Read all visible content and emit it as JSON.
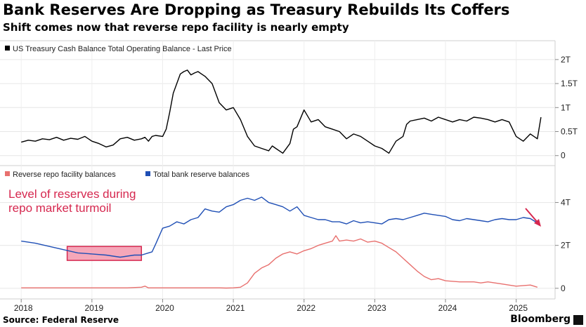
{
  "title": "Bank Reserves Are Dropping as Treasury Rebuilds Its Coffers",
  "subtitle": "Shift comes now that reverse repo facility is nearly empty",
  "source": "Source: Federal Reserve",
  "brand": "Bloomberg",
  "colors": {
    "treasury": "#000000",
    "rrp": "#e8706e",
    "reserves": "#1f4fb5",
    "highlight_fill": "#f28aa2",
    "highlight_stroke": "#d6284f",
    "annotation": "#d6284f"
  },
  "annotation": {
    "line1": "Level of reserves during",
    "line2": "repo market turmoil"
  },
  "chart_data": [
    {
      "type": "line",
      "legend": [
        "US Treasury Cash Balance Total Operating Balance - Last Price"
      ],
      "ylim": [
        -0.15,
        2.1
      ],
      "y_ticks": [
        0,
        0.5,
        1,
        1.5,
        2
      ],
      "y_tick_labels": [
        "0",
        "0.5T",
        "1T",
        "1.5T",
        "2T"
      ],
      "series": [
        {
          "name": "US Treasury Cash Balance Total Operating Balance - Last Price",
          "x": [
            2018.0,
            2018.1,
            2018.2,
            2018.3,
            2018.4,
            2018.5,
            2018.6,
            2018.7,
            2018.8,
            2018.9,
            2019.0,
            2019.1,
            2019.2,
            2019.3,
            2019.4,
            2019.5,
            2019.6,
            2019.7,
            2019.75,
            2019.8,
            2019.85,
            2019.9,
            2020.0,
            2020.05,
            2020.1,
            2020.15,
            2020.2,
            2020.25,
            2020.3,
            2020.35,
            2020.4,
            2020.45,
            2020.5,
            2020.55,
            2020.6,
            2020.7,
            2020.8,
            2020.9,
            2021.0,
            2021.1,
            2021.2,
            2021.3,
            2021.4,
            2021.5,
            2021.55,
            2021.6,
            2021.7,
            2021.8,
            2021.85,
            2021.9,
            2022.0,
            2022.1,
            2022.2,
            2022.3,
            2022.4,
            2022.5,
            2022.6,
            2022.7,
            2022.8,
            2022.9,
            2023.0,
            2023.1,
            2023.2,
            2023.3,
            2023.4,
            2023.45,
            2023.5,
            2023.6,
            2023.7,
            2023.8,
            2023.9,
            2024.0,
            2024.1,
            2024.2,
            2024.3,
            2024.4,
            2024.5,
            2024.6,
            2024.7,
            2024.8,
            2024.9,
            2025.0,
            2025.1,
            2025.2,
            2025.3,
            2025.35
          ],
          "y": [
            0.28,
            0.32,
            0.3,
            0.35,
            0.33,
            0.38,
            0.32,
            0.36,
            0.34,
            0.4,
            0.3,
            0.25,
            0.18,
            0.22,
            0.35,
            0.38,
            0.32,
            0.35,
            0.38,
            0.3,
            0.4,
            0.42,
            0.4,
            0.55,
            0.9,
            1.3,
            1.5,
            1.7,
            1.75,
            1.78,
            1.68,
            1.72,
            1.75,
            1.7,
            1.65,
            1.5,
            1.1,
            0.95,
            1.0,
            0.75,
            0.4,
            0.2,
            0.15,
            0.1,
            0.2,
            0.15,
            0.05,
            0.25,
            0.55,
            0.6,
            0.95,
            0.7,
            0.75,
            0.6,
            0.55,
            0.5,
            0.35,
            0.45,
            0.4,
            0.3,
            0.2,
            0.15,
            0.05,
            0.3,
            0.4,
            0.65,
            0.72,
            0.75,
            0.78,
            0.72,
            0.8,
            0.75,
            0.7,
            0.75,
            0.72,
            0.8,
            0.78,
            0.75,
            0.7,
            0.75,
            0.7,
            0.4,
            0.3,
            0.45,
            0.35,
            0.8
          ]
        }
      ]
    },
    {
      "type": "line",
      "legend": [
        "Reverse repo facility balances",
        "Total bank reserve balances"
      ],
      "ylim": [
        -0.3,
        5.0
      ],
      "y_ticks": [
        0,
        2,
        4
      ],
      "y_tick_labels": [
        "0",
        "2T",
        "4T"
      ],
      "series": [
        {
          "name": "Reverse repo facility balances",
          "x": [
            2018.0,
            2018.5,
            2019.0,
            2019.5,
            2019.7,
            2019.75,
            2019.8,
            2020.0,
            2020.5,
            2020.8,
            2020.9,
            2021.0,
            2021.1,
            2021.2,
            2021.3,
            2021.4,
            2021.5,
            2021.6,
            2021.7,
            2021.8,
            2021.9,
            2022.0,
            2022.1,
            2022.2,
            2022.3,
            2022.4,
            2022.45,
            2022.5,
            2022.6,
            2022.7,
            2022.8,
            2022.9,
            2023.0,
            2023.1,
            2023.2,
            2023.3,
            2023.4,
            2023.5,
            2023.6,
            2023.7,
            2023.8,
            2023.9,
            2024.0,
            2024.2,
            2024.4,
            2024.5,
            2024.6,
            2024.8,
            2025.0,
            2025.2,
            2025.3
          ],
          "y": [
            0.02,
            0.02,
            0.02,
            0.02,
            0.05,
            0.1,
            0.02,
            0.02,
            0.02,
            0.02,
            0.01,
            0.02,
            0.05,
            0.25,
            0.7,
            0.95,
            1.1,
            1.4,
            1.6,
            1.7,
            1.6,
            1.75,
            1.85,
            2.0,
            2.1,
            2.2,
            2.45,
            2.2,
            2.25,
            2.2,
            2.3,
            2.15,
            2.2,
            2.1,
            1.9,
            1.7,
            1.4,
            1.1,
            0.8,
            0.55,
            0.4,
            0.45,
            0.35,
            0.3,
            0.3,
            0.25,
            0.3,
            0.2,
            0.1,
            0.15,
            0.05
          ]
        },
        {
          "name": "Total bank reserve balances",
          "x": [
            2018.0,
            2018.2,
            2018.4,
            2018.6,
            2018.8,
            2019.0,
            2019.2,
            2019.4,
            2019.6,
            2019.7,
            2019.8,
            2019.85,
            2019.9,
            2020.0,
            2020.1,
            2020.2,
            2020.3,
            2020.4,
            2020.5,
            2020.6,
            2020.7,
            2020.8,
            2020.9,
            2021.0,
            2021.1,
            2021.2,
            2021.3,
            2021.4,
            2021.5,
            2021.6,
            2021.7,
            2021.8,
            2021.9,
            2022.0,
            2022.1,
            2022.2,
            2022.3,
            2022.4,
            2022.5,
            2022.6,
            2022.7,
            2022.8,
            2022.9,
            2023.0,
            2023.1,
            2023.2,
            2023.3,
            2023.4,
            2023.5,
            2023.6,
            2023.7,
            2023.8,
            2023.9,
            2024.0,
            2024.1,
            2024.2,
            2024.3,
            2024.4,
            2024.5,
            2024.6,
            2024.7,
            2024.8,
            2024.9,
            2025.0,
            2025.1,
            2025.2,
            2025.3
          ],
          "y": [
            2.2,
            2.1,
            1.95,
            1.8,
            1.65,
            1.6,
            1.55,
            1.45,
            1.55,
            1.55,
            1.65,
            1.7,
            2.05,
            2.8,
            2.9,
            3.1,
            3.0,
            3.2,
            3.3,
            3.7,
            3.6,
            3.55,
            3.8,
            3.9,
            4.1,
            4.2,
            4.1,
            4.25,
            4.0,
            3.9,
            3.8,
            3.6,
            3.8,
            3.4,
            3.3,
            3.2,
            3.2,
            3.1,
            3.1,
            3.0,
            3.15,
            3.05,
            3.1,
            3.05,
            3.0,
            3.2,
            3.25,
            3.2,
            3.3,
            3.4,
            3.5,
            3.45,
            3.4,
            3.35,
            3.2,
            3.15,
            3.25,
            3.2,
            3.15,
            3.1,
            3.2,
            3.25,
            3.2,
            3.2,
            3.3,
            3.25,
            3.05
          ]
        }
      ]
    }
  ],
  "x_axis": {
    "xlim": [
      2017.7,
      2025.55
    ],
    "ticks": [
      2018,
      2019,
      2020,
      2021,
      2022,
      2023,
      2024,
      2025
    ],
    "tick_labels": [
      "2018",
      "2019",
      "2020",
      "2021",
      "2022",
      "2023",
      "2024",
      "2025"
    ]
  },
  "highlight": {
    "x_from": 2018.65,
    "x_to": 2019.7,
    "y_from": 1.3,
    "y_to": 1.95
  }
}
